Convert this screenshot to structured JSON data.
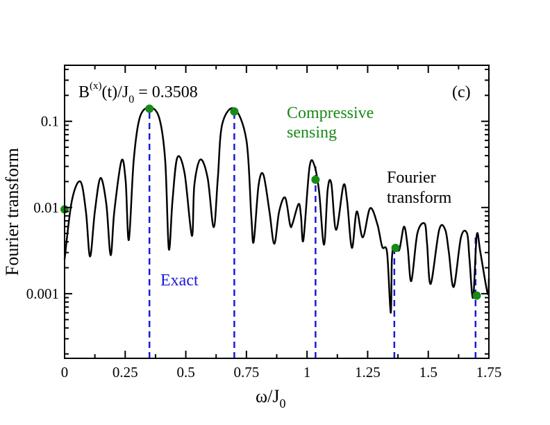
{
  "chart_data": {
    "type": "line",
    "title": "",
    "xlabel_main": "ω/J",
    "xlabel_sub": "0",
    "ylabel": "Fourier transform",
    "xlim": [
      0,
      1.75
    ],
    "ylim_log10": [
      -3.75,
      -0.35
    ],
    "y_scale": "log",
    "x_ticks": [
      {
        "v": 0,
        "label": "0"
      },
      {
        "v": 0.25,
        "label": "0.25"
      },
      {
        "v": 0.5,
        "label": "0.5"
      },
      {
        "v": 0.75,
        "label": "0.75"
      },
      {
        "v": 1.0,
        "label": "1"
      },
      {
        "v": 1.25,
        "label": "1.25"
      },
      {
        "v": 1.5,
        "label": "1.5"
      },
      {
        "v": 1.75,
        "label": "1.75"
      }
    ],
    "y_ticks": [
      {
        "v": 0.1,
        "label": "0.1"
      },
      {
        "v": 0.01,
        "label": "0.01"
      },
      {
        "v": 0.001,
        "label": "0.001"
      }
    ],
    "field_label": {
      "b_main": "B",
      "b_sup": "(x)",
      "b_mid": "(t)/J",
      "b_sub": "0",
      "b_val": " = 0.3508"
    },
    "panel_label": "(c)",
    "exact_label": "Exact",
    "compressive_label_line1": "Compressive",
    "compressive_label_line2": "sensing",
    "fourier_label_line1": "Fourier",
    "fourier_label_line2": "transform",
    "colors": {
      "fourier": "#000000",
      "exact": "#1a1adb",
      "compressive": "#178a17"
    },
    "series": [
      {
        "name": "Fourier transform",
        "style": "line",
        "x": [
          0.0,
          0.03,
          0.065,
          0.088,
          0.105,
          0.125,
          0.148,
          0.172,
          0.19,
          0.205,
          0.235,
          0.252,
          0.265,
          0.285,
          0.31,
          0.35,
          0.39,
          0.415,
          0.43,
          0.445,
          0.465,
          0.495,
          0.525,
          0.535,
          0.56,
          0.59,
          0.615,
          0.632,
          0.65,
          0.7,
          0.75,
          0.77,
          0.78,
          0.8,
          0.82,
          0.845,
          0.865,
          0.885,
          0.91,
          0.93,
          0.94,
          0.965,
          0.975,
          0.985,
          1.01,
          1.03,
          1.05,
          1.07,
          1.085,
          1.1,
          1.12,
          1.15,
          1.165,
          1.185,
          1.205,
          1.23,
          1.26,
          1.29,
          1.31,
          1.33,
          1.345,
          1.35,
          1.36,
          1.38,
          1.4,
          1.415,
          1.43,
          1.455,
          1.485,
          1.495,
          1.51,
          1.545,
          1.57,
          1.585,
          1.605,
          1.635,
          1.66,
          1.67,
          1.685,
          1.7,
          1.715,
          1.745,
          1.75
        ],
        "y": [
          0.0025,
          0.012,
          0.02,
          0.009,
          0.0027,
          0.009,
          0.022,
          0.011,
          0.0028,
          0.009,
          0.035,
          0.02,
          0.0042,
          0.035,
          0.11,
          0.145,
          0.11,
          0.035,
          0.0033,
          0.012,
          0.038,
          0.025,
          0.0047,
          0.018,
          0.036,
          0.022,
          0.0059,
          0.022,
          0.092,
          0.14,
          0.06,
          0.008,
          0.004,
          0.018,
          0.024,
          0.009,
          0.0038,
          0.009,
          0.013,
          0.0063,
          0.0065,
          0.011,
          0.008,
          0.0042,
          0.029,
          0.031,
          0.015,
          0.0037,
          0.016,
          0.019,
          0.0055,
          0.018,
          0.012,
          0.0034,
          0.009,
          0.0045,
          0.0098,
          0.0064,
          0.0035,
          0.003,
          0.0006,
          0.0025,
          0.0036,
          0.0032,
          0.006,
          0.0035,
          0.0014,
          0.005,
          0.0065,
          0.0038,
          0.0013,
          0.0055,
          0.0055,
          0.003,
          0.0012,
          0.0045,
          0.005,
          0.0025,
          0.0009,
          0.0048,
          0.003,
          0.001,
          0.0015
        ]
      },
      {
        "name": "Exact",
        "style": "impulses",
        "x": [
          0.35,
          0.7,
          1.035,
          1.36,
          1.695
        ],
        "y": [
          0.14,
          0.13,
          0.03,
          0.0037,
          0.0046
        ]
      },
      {
        "name": "Compressive sensing",
        "style": "markers",
        "x": [
          0.0,
          0.35,
          0.7,
          1.035,
          1.365,
          1.7
        ],
        "y": [
          0.0095,
          0.14,
          0.13,
          0.021,
          0.0034,
          0.00095
        ]
      }
    ]
  }
}
